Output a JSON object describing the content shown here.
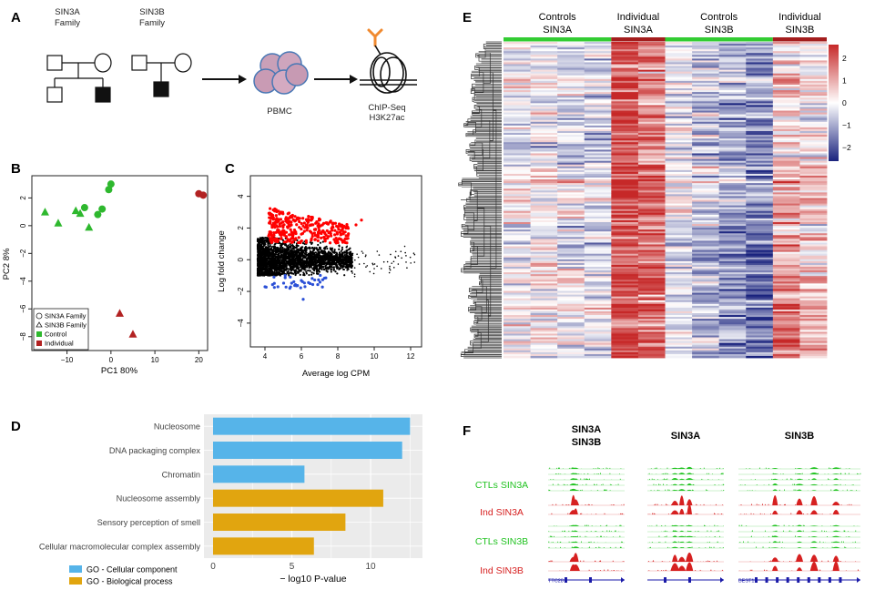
{
  "panels": {
    "A": "A",
    "B": "B",
    "C": "C",
    "D": "D",
    "E": "E",
    "F": "F"
  },
  "panel_a": {
    "family1_line1": "SIN3A",
    "family1_line2": "Family",
    "family2_line1": "SIN3B",
    "family2_line2": "Family",
    "pbmc": "PBMC",
    "chipseq_line1": "ChIP-Seq",
    "chipseq_line2": "H3K27ac",
    "antibody_color": "#f08a30"
  },
  "chart_data": [
    {
      "id": "B",
      "type": "scatter",
      "xlabel": "PC1 80%",
      "ylabel": "PC2 8%",
      "xticks": [
        -10,
        0,
        10,
        20
      ],
      "yticks": [
        2,
        0,
        -2,
        -4,
        -6,
        -8
      ],
      "xlim": [
        -18,
        22
      ],
      "ylim": [
        -9,
        3.6
      ],
      "series": [
        {
          "name": "SIN3A Family",
          "shape": "circle",
          "group": "Control",
          "color": "#2eb82e",
          "points": [
            [
              0,
              3.0
            ],
            [
              -0.5,
              2.6
            ],
            [
              -6,
              1.3
            ],
            [
              -2,
              1.2
            ],
            [
              -3,
              0.8
            ]
          ]
        },
        {
          "name": "SIN3B Family",
          "shape": "triangle",
          "group": "Control",
          "color": "#2eb82e",
          "points": [
            [
              -15,
              1.0
            ],
            [
              -12,
              0.2
            ],
            [
              -8,
              1.1
            ],
            [
              -7,
              0.9
            ],
            [
              -5,
              -0.1
            ]
          ]
        },
        {
          "name": "SIN3A Family",
          "shape": "circle",
          "group": "Individual",
          "color": "#b22222",
          "points": [
            [
              20,
              2.3
            ],
            [
              21,
              2.2
            ]
          ]
        },
        {
          "name": "SIN3B Family",
          "shape": "triangle",
          "group": "Individual",
          "color": "#b22222",
          "points": [
            [
              2,
              -6.3
            ],
            [
              5,
              -7.8
            ]
          ]
        }
      ],
      "legend": {
        "placement": "bottom-left",
        "entries": [
          "SIN3A Family",
          "SIN3B Family",
          "Control",
          "Individual"
        ]
      }
    },
    {
      "id": "C",
      "type": "scatter",
      "xlabel": "Average log CPM",
      "ylabel": "Log fold change",
      "xticks": [
        4,
        6,
        8,
        10,
        12
      ],
      "yticks": [
        4,
        2,
        0,
        -2,
        -4
      ],
      "xlim": [
        3.2,
        12.6
      ],
      "ylim": [
        -5.5,
        5.3
      ],
      "colors": {
        "up": "#ff0000",
        "down": "#2a4fd6",
        "ns": "#000000"
      },
      "note": "MA plot: dense black cloud around 0, red points above (~+1 to +3.3), blue points below (~-1 to -2.5)"
    },
    {
      "id": "D",
      "type": "bar",
      "orientation": "horizontal",
      "xlabel": "− log10 P-value",
      "xticks": [
        0,
        5,
        10
      ],
      "xlim": [
        0,
        13
      ],
      "categories": [
        "Nucleosome",
        "DNA packaging complex",
        "Chromatin",
        "Nucleosome assembly",
        "Sensory perception of smell",
        "Cellular macromolecular complex assembly"
      ],
      "values": [
        12.5,
        12.0,
        5.8,
        10.8,
        8.4,
        6.4
      ],
      "groups": [
        "cc",
        "cc",
        "cc",
        "bp",
        "bp",
        "bp"
      ],
      "colors": {
        "cc": "#56b4e9",
        "bp": "#e1a50f"
      },
      "legend": [
        {
          "key": "cc",
          "label": "GO - Cellular component"
        },
        {
          "key": "bp",
          "label": "GO - Biological process"
        }
      ]
    },
    {
      "id": "E",
      "type": "heatmap",
      "groups": [
        {
          "line1": "Controls",
          "line2": "SIN3A",
          "columns": 4,
          "color": "#33cc33"
        },
        {
          "line1": "Individual",
          "line2": "SIN3A",
          "columns": 2,
          "color": "#a31d1d"
        },
        {
          "line1": "Controls",
          "line2": "SIN3B",
          "columns": 4,
          "color": "#33cc33"
        },
        {
          "line1": "Individual",
          "line2": "SIN3B",
          "columns": 2,
          "color": "#a31d1d"
        }
      ],
      "column_bias": [
        -0.1,
        0.1,
        -0.2,
        -0.3,
        2.0,
        1.6,
        -0.2,
        -0.6,
        -1.2,
        -1.6,
        0.9,
        0.5
      ],
      "colorbar": {
        "ticks": [
          2,
          1,
          0,
          -1,
          -2
        ],
        "labels": [
          "2",
          "1",
          "0",
          "−1",
          "−2"
        ],
        "high": "#c62828",
        "mid": "#ffffff",
        "low": "#1a237e"
      }
    }
  ],
  "panel_f": {
    "headers": [
      {
        "line1": "SIN3A",
        "line2": "SIN3B"
      },
      {
        "line1": "SIN3A",
        "line2": ""
      },
      {
        "line1": "SIN3B",
        "line2": ""
      }
    ],
    "rows": [
      {
        "label": "CTLs SIN3A",
        "color": "#22c322"
      },
      {
        "label": "Ind SIN3A",
        "color": "#d62020"
      },
      {
        "label": "CTLs SIN3B",
        "color": "#22c322"
      },
      {
        "label": "Ind SIN3B",
        "color": "#d62020"
      }
    ],
    "gene_labels": [
      "TTC28",
      "",
      "BEST1"
    ],
    "gene_color": "#1a1aa8"
  }
}
